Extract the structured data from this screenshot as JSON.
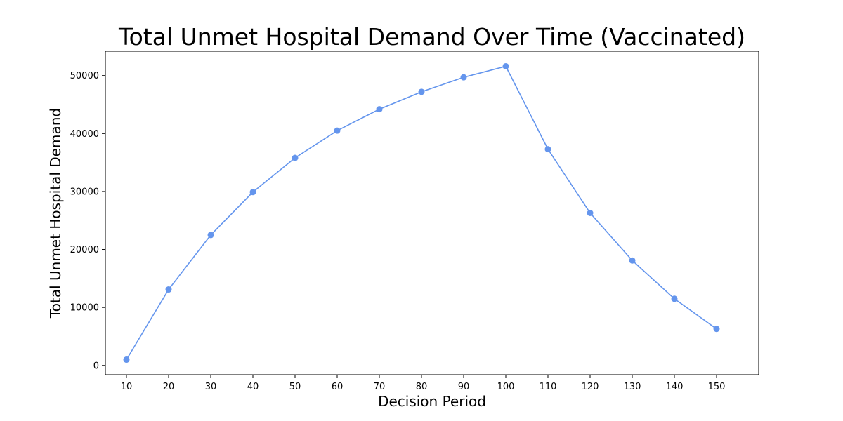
{
  "chart_data": {
    "type": "line",
    "title": "Total Unmet Hospital Demand Over Time (Vaccinated)",
    "xlabel": "Decision Period",
    "ylabel": "Total Unmet Hospital Demand",
    "x": [
      10,
      20,
      30,
      40,
      50,
      60,
      70,
      80,
      90,
      100,
      110,
      120,
      130,
      140,
      150
    ],
    "series": [
      {
        "values": [
          1000,
          13100,
          22500,
          29900,
          35800,
          40500,
          44200,
          47200,
          49700,
          51600,
          37300,
          26300,
          18100,
          11500,
          6300
        ],
        "color": "#6495ed",
        "marker": "circle"
      }
    ],
    "xticks": [
      "10",
      "20",
      "30",
      "40",
      "50",
      "60",
      "70",
      "80",
      "90",
      "100",
      "110",
      "120",
      "130",
      "140",
      "150"
    ],
    "yticks": [
      "0",
      "10000",
      "20000",
      "30000",
      "40000",
      "50000"
    ],
    "xlim": [
      5,
      160
    ],
    "ylim": [
      -1600,
      54200
    ],
    "grid": false,
    "legend": false
  }
}
